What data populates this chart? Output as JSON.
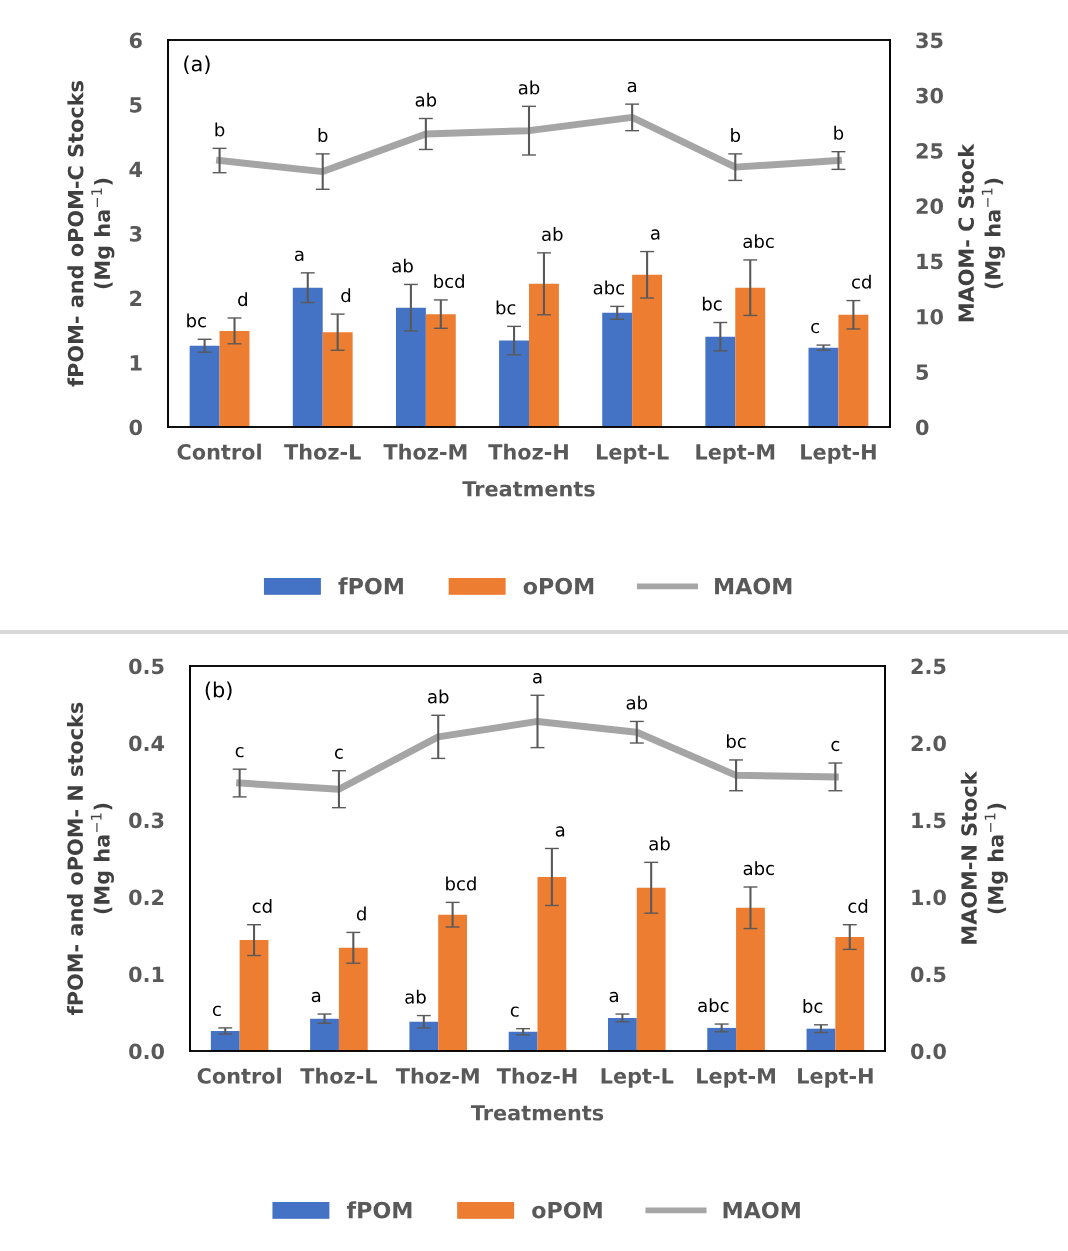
{
  "chart_data": [
    {
      "type": "bar",
      "xlabel": "Treatments",
      "ylabel": "fPOM- and oPOM-C Stocks\n(Mg ha$^{−1}$)",
      "y2label": "MAOM- C Stock\n(Mg ha$^{−1}$)",
      "annotations": [
        "(a)"
      ],
      "categories": [
        "Control",
        "Thoz-L",
        "Thoz-M",
        "Thoz-H",
        "Lept-L",
        "Lept-M",
        "Lept-H"
      ],
      "ylim": [
        0,
        6
      ],
      "yticks": [
        0,
        1,
        2,
        3,
        4,
        5,
        6
      ],
      "y2lim": [
        0,
        35
      ],
      "y2ticks": [
        0,
        5,
        10,
        15,
        20,
        25,
        30,
        35
      ],
      "grid": false,
      "legend": "bottom",
      "marker": "none",
      "line_style": "solid",
      "series": [
        {
          "name": "fPOM",
          "color": "#4472c4",
          "values": [
            1.26,
            2.16,
            1.85,
            1.34,
            1.77,
            1.4,
            1.23
          ],
          "errors": [
            0.1,
            0.23,
            0.36,
            0.22,
            0.1,
            0.22,
            0.04
          ],
          "value_labels": [
            "bc",
            "a",
            "ab",
            "bc",
            "abc",
            "bc",
            "c"
          ]
        },
        {
          "name": "oPOM",
          "color": "#ed7d31",
          "values": [
            1.49,
            1.47,
            1.75,
            2.22,
            2.36,
            2.16,
            1.74
          ],
          "errors": [
            0.2,
            0.28,
            0.22,
            0.48,
            0.36,
            0.43,
            0.22
          ],
          "value_labels": [
            "d",
            "d",
            "bcd",
            "ab",
            "a",
            "abc",
            "cd"
          ]
        },
        {
          "name": "MAOM",
          "type": "line",
          "axis": "y2",
          "color": "#a5a5a5",
          "values": [
            24.1,
            23.1,
            26.5,
            26.8,
            28.0,
            23.5,
            24.1
          ],
          "errors": [
            1.1,
            1.6,
            1.4,
            2.2,
            1.2,
            1.2,
            0.8
          ],
          "value_labels": [
            "b",
            "b",
            "ab",
            "ab",
            "a",
            "b",
            "b"
          ]
        }
      ]
    },
    {
      "type": "bar",
      "xlabel": "Treatments",
      "ylabel": "fPOM- and oPOM- N stocks\n(Mg ha$^{−1}$)",
      "y2label": "MAOM-N Stock\n(Mg ha$^{−1}$)",
      "annotations": [
        "(b)"
      ],
      "categories": [
        "Control",
        "Thoz-L",
        "Thoz-M",
        "Thoz-H",
        "Lept-L",
        "Lept-M",
        "Lept-H"
      ],
      "ylim": [
        0,
        0.5
      ],
      "yticks": [
        {
          "value": 0,
          "label": "0.0"
        },
        0.1,
        0.2,
        0.3,
        0.4,
        0.5
      ],
      "y2lim": [
        0,
        2.5
      ],
      "y2ticks": [
        {
          "value": 0,
          "label": "0.0"
        },
        0.5,
        {
          "value": 1,
          "label": "1.0"
        },
        1.5,
        {
          "value": 2,
          "label": "2.0"
        },
        2.5
      ],
      "grid": false,
      "legend": "bottom",
      "marker": "none",
      "line_style": "solid",
      "series": [
        {
          "name": "fPOM",
          "color": "#4472c4",
          "values": [
            0.026,
            0.042,
            0.038,
            0.025,
            0.043,
            0.03,
            0.029
          ],
          "errors": [
            0.004,
            0.006,
            0.008,
            0.004,
            0.005,
            0.005,
            0.005
          ],
          "value_labels": [
            "c",
            "a",
            "ab",
            "c",
            "a",
            "abc",
            "bc"
          ]
        },
        {
          "name": "oPOM",
          "color": "#ed7d31",
          "values": [
            0.144,
            0.134,
            0.177,
            0.226,
            0.212,
            0.186,
            0.148
          ],
          "errors": [
            0.02,
            0.02,
            0.016,
            0.037,
            0.033,
            0.027,
            0.016
          ],
          "value_labels": [
            "cd",
            "d",
            "bcd",
            "a",
            "ab",
            "abc",
            "cd"
          ]
        },
        {
          "name": "MAOM",
          "type": "line",
          "axis": "y2",
          "color": "#a5a5a5",
          "values": [
            1.74,
            1.7,
            2.04,
            2.14,
            2.07,
            1.79,
            1.78
          ],
          "errors": [
            0.09,
            0.12,
            0.14,
            0.17,
            0.07,
            0.1,
            0.09
          ],
          "value_labels": [
            "c",
            "c",
            "ab",
            "a",
            "ab",
            "bc",
            "c"
          ]
        }
      ]
    }
  ]
}
